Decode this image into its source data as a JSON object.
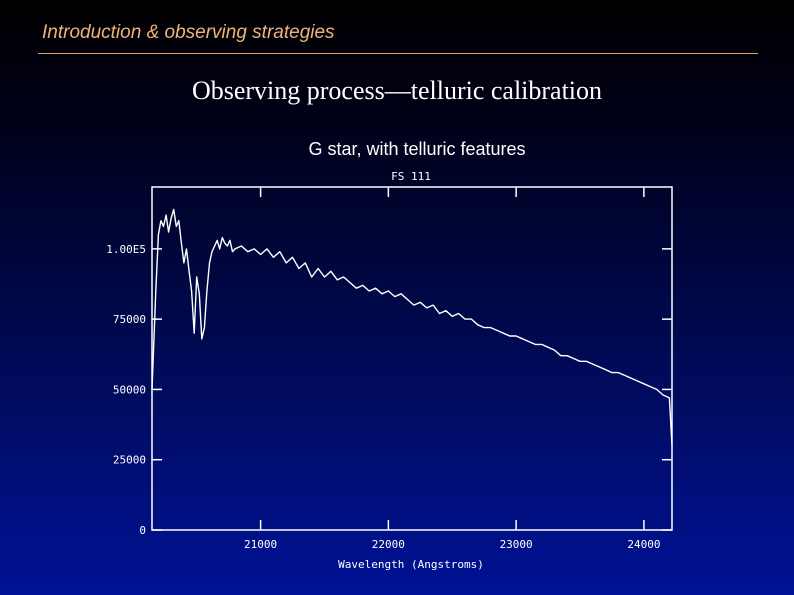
{
  "header": {
    "section_title": "Introduction & observing strategies",
    "rule_color": "#e3a064",
    "section_title_color": "#f0b478"
  },
  "slide": {
    "title": "Observing process—telluric calibration",
    "caption": "G star, with telluric features"
  },
  "chart_data": {
    "type": "line",
    "title": "FS 111",
    "xlabel": "Wavelength (Angstroms)",
    "ylabel": "",
    "xlim": [
      20150,
      24220
    ],
    "ylim": [
      0,
      122000
    ],
    "xticks": [
      21000,
      22000,
      23000,
      24000
    ],
    "xtick_labels": [
      "21000",
      "22000",
      "23000",
      "24000"
    ],
    "yticks": [
      0,
      25000,
      50000,
      75000,
      100000
    ],
    "ytick_labels": [
      "0",
      "25000",
      "50000",
      "75000",
      "1.00E5"
    ],
    "grid": false,
    "series": [
      {
        "color": "#ffffff",
        "x": [
          20150,
          20160,
          20180,
          20200,
          20220,
          20240,
          20260,
          20280,
          20300,
          20320,
          20340,
          20360,
          20380,
          20400,
          20420,
          20440,
          20460,
          20480,
          20500,
          20520,
          20540,
          20560,
          20580,
          20600,
          20620,
          20640,
          20660,
          20680,
          20700,
          20720,
          20740,
          20760,
          20780,
          20800,
          20850,
          20900,
          20950,
          21000,
          21050,
          21100,
          21150,
          21200,
          21250,
          21300,
          21350,
          21400,
          21450,
          21500,
          21550,
          21600,
          21650,
          21700,
          21750,
          21800,
          21850,
          21900,
          21950,
          22000,
          22050,
          22100,
          22150,
          22200,
          22250,
          22300,
          22350,
          22400,
          22450,
          22500,
          22550,
          22600,
          22650,
          22700,
          22750,
          22800,
          22850,
          22900,
          22950,
          23000,
          23050,
          23100,
          23150,
          23200,
          23250,
          23300,
          23350,
          23400,
          23450,
          23500,
          23550,
          23600,
          23650,
          23700,
          23750,
          23800,
          23850,
          23900,
          23950,
          24000,
          24050,
          24100,
          24150,
          24200,
          24220
        ],
        "y": [
          50000,
          62000,
          85000,
          105000,
          110000,
          108000,
          112000,
          106000,
          111000,
          114000,
          108000,
          110000,
          102000,
          95000,
          100000,
          92000,
          85000,
          70000,
          90000,
          84000,
          68000,
          72000,
          85000,
          95000,
          99000,
          101000,
          103000,
          100000,
          104000,
          102000,
          101000,
          103000,
          99000,
          100000,
          101000,
          99000,
          100000,
          98000,
          100000,
          97000,
          99000,
          95000,
          97000,
          93000,
          95000,
          90000,
          93000,
          90000,
          92000,
          89000,
          90000,
          88000,
          86000,
          87000,
          85000,
          86000,
          84000,
          85000,
          83000,
          84000,
          82000,
          80000,
          81000,
          79000,
          80000,
          77000,
          78000,
          76000,
          77000,
          75000,
          75000,
          73000,
          72000,
          72000,
          71000,
          70000,
          69000,
          69000,
          68000,
          67000,
          66000,
          66000,
          65000,
          64000,
          62000,
          62000,
          61000,
          60000,
          60000,
          59000,
          58000,
          57000,
          56000,
          56000,
          55000,
          54000,
          53000,
          52000,
          51000,
          50000,
          48000,
          47000,
          30000
        ]
      }
    ]
  }
}
